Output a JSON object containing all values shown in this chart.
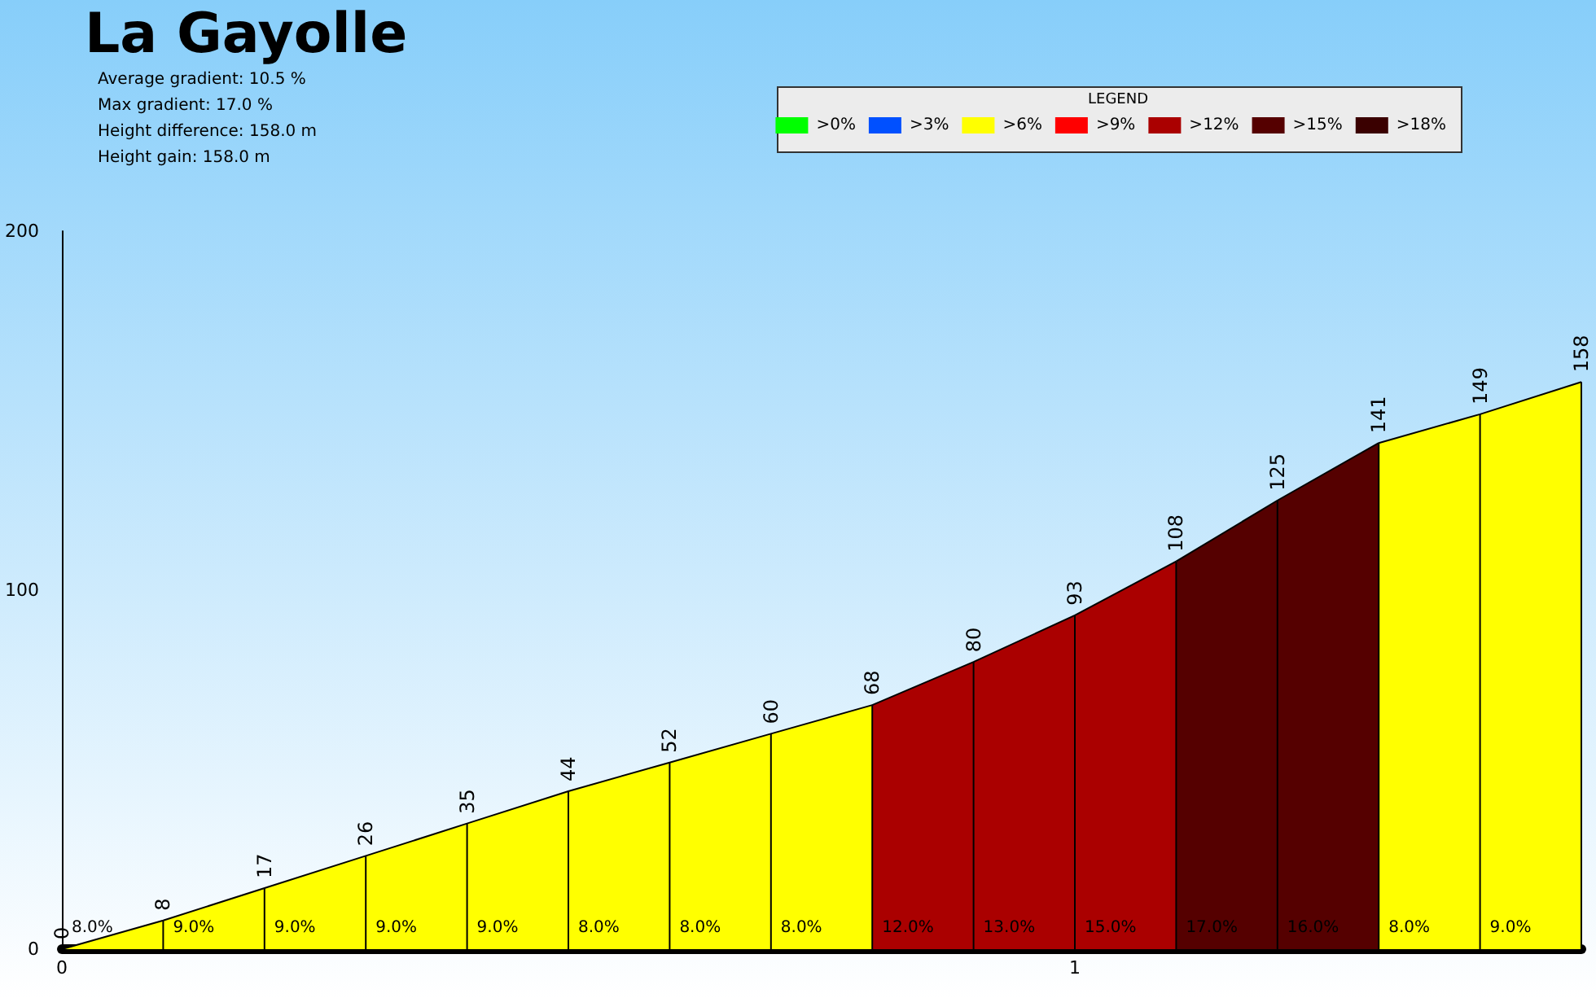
{
  "chart_data": {
    "type": "area",
    "title": "La Gayolle",
    "legend_title": "LEGEND",
    "annotations": [
      "Average gradient: 10.5 %",
      "Max gradient: 17.0 %",
      "Height difference: 158.0 m",
      "Height gain: 158.0 m",
      {
        "text": "8.0%",
        "x": 0,
        "y": 0
      },
      {
        "text": "9.0%",
        "x": 0.1,
        "y": 0
      },
      {
        "text": "9.0%",
        "x": 0.2,
        "y": 0
      },
      {
        "text": "9.0%",
        "x": 0.3,
        "y": 0
      },
      {
        "text": "9.0%",
        "x": 0.4,
        "y": 0
      },
      {
        "text": "8.0%",
        "x": 0.5,
        "y": 0
      },
      {
        "text": "8.0%",
        "x": 0.6,
        "y": 0
      },
      {
        "text": "8.0%",
        "x": 0.7,
        "y": 0
      },
      {
        "text": "12.0%",
        "x": 0.8,
        "y": 0
      },
      {
        "text": "13.0%",
        "x": 0.9,
        "y": 0
      },
      {
        "text": "15.0%",
        "x": 1.0,
        "y": 0
      },
      {
        "text": "17.0%",
        "x": 1.1,
        "y": 0
      },
      {
        "text": "16.0%",
        "x": 1.2,
        "y": 0
      },
      {
        "text": "8.0%",
        "x": 1.3,
        "y": 0
      },
      {
        "text": "9.0%",
        "x": 1.4,
        "y": 0
      }
    ],
    "x": [
      0,
      0.1,
      0.2,
      0.3,
      0.4,
      0.5,
      0.6,
      0.7,
      0.8,
      0.9,
      1.0,
      1.1,
      1.2,
      1.3,
      1.4,
      1.5
    ],
    "series": [
      {
        "name": ">0%",
        "color": "#00ff00",
        "values": [
          null,
          null,
          null,
          null,
          null,
          null,
          null,
          null,
          null,
          null,
          null,
          null,
          null,
          null,
          null,
          null
        ]
      },
      {
        "name": ">3%",
        "color": "#0050ff",
        "values": [
          null,
          null,
          null,
          null,
          null,
          null,
          null,
          null,
          null,
          null,
          null,
          null,
          null,
          null,
          null,
          null
        ]
      },
      {
        "name": ">6%",
        "color": "#ffff00",
        "values": [
          0,
          8,
          17,
          26,
          35,
          44,
          52,
          60,
          68,
          null,
          null,
          null,
          null,
          141,
          149,
          158
        ],
        "value_labels": [
          "0",
          "8",
          "17",
          "26",
          "35",
          "44",
          "52",
          "60",
          "68",
          null,
          null,
          null,
          null,
          "141",
          "149",
          "158"
        ]
      },
      {
        "name": ">9%",
        "color": "#ff0000",
        "values": [
          null,
          null,
          null,
          null,
          null,
          null,
          null,
          null,
          null,
          null,
          null,
          null,
          null,
          null,
          null,
          null
        ]
      },
      {
        "name": ">12%",
        "color": "#aa0000",
        "values": [
          null,
          null,
          null,
          null,
          null,
          null,
          null,
          null,
          68,
          80,
          93,
          108,
          null,
          null,
          null,
          null
        ],
        "value_labels": [
          null,
          null,
          null,
          null,
          null,
          null,
          null,
          null,
          null,
          "80",
          "93",
          "108",
          null,
          null,
          null,
          null
        ]
      },
      {
        "name": ">15%",
        "color": "#550000",
        "values": [
          null,
          null,
          null,
          null,
          null,
          null,
          null,
          null,
          null,
          null,
          null,
          108,
          125,
          141,
          null,
          null
        ],
        "value_labels": [
          null,
          null,
          null,
          null,
          null,
          null,
          null,
          null,
          null,
          null,
          null,
          null,
          "125",
          null,
          null,
          null
        ]
      },
      {
        "name": ">18%",
        "color": "#3a0000",
        "values": [
          null,
          null,
          null,
          null,
          null,
          null,
          null,
          null,
          null,
          null,
          null,
          null,
          null,
          null,
          null,
          null
        ]
      }
    ],
    "xlim": [
      0,
      1.5
    ],
    "xticks": [
      0,
      1
    ],
    "ylim": [
      0,
      200
    ],
    "yticks": [
      0,
      100,
      200
    ],
    "legend": "top right",
    "grid": false
  }
}
